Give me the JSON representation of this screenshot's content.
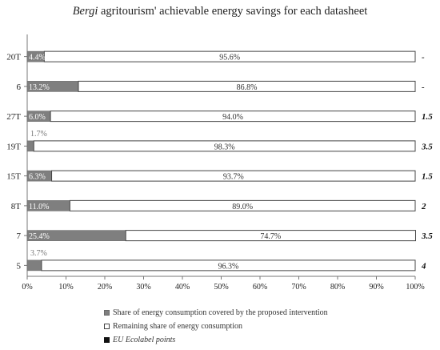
{
  "title_italic": "Bergi",
  "title_rest": " agritourism' achievable energy savings for each datasheet",
  "legend": {
    "covered": "Share of energy consumption covered by the proposed intervention",
    "remaining": "Remaining share of energy consumption",
    "points": "EU Ecolabel points"
  },
  "colors": {
    "covered": "#7f7f7f",
    "remaining": "#ffffff",
    "outline": "#444444"
  },
  "chart_data": {
    "type": "bar",
    "orientation": "horizontal",
    "stacked": true,
    "categories": [
      "20T",
      "6",
      "27T",
      "19T",
      "15T",
      "8T",
      "7",
      "5"
    ],
    "series": [
      {
        "name": "Share of energy consumption covered by the proposed intervention",
        "values": [
          4.4,
          13.2,
          6.0,
          1.7,
          6.3,
          11.0,
          25.4,
          3.7
        ],
        "labels": [
          "4.4%",
          "13.2%",
          "6.0%",
          "1.7%",
          "6.3%",
          "11.0%",
          "25.4%",
          "3.7%"
        ]
      },
      {
        "name": "Remaining share of energy consumption",
        "values": [
          95.6,
          86.8,
          94.0,
          98.3,
          93.7,
          89.0,
          74.7,
          96.3
        ],
        "labels": [
          "95.6%",
          "86.8%",
          "94.0%",
          "98.3%",
          "93.7%",
          "89.0%",
          "74.7%",
          "96.3%"
        ]
      }
    ],
    "ecolabel_points": [
      "-",
      "-",
      "1.5",
      "3.5",
      "1.5",
      "2",
      "3.5",
      "4"
    ],
    "xlim": [
      0,
      100
    ],
    "xticks": [
      0,
      10,
      20,
      30,
      40,
      50,
      60,
      70,
      80,
      90,
      100
    ],
    "xtick_labels": [
      "0%",
      "10%",
      "20%",
      "30%",
      "40%",
      "50%",
      "60%",
      "70%",
      "80%",
      "90%",
      "100%"
    ],
    "legend_position": "bottom",
    "grid": false
  }
}
